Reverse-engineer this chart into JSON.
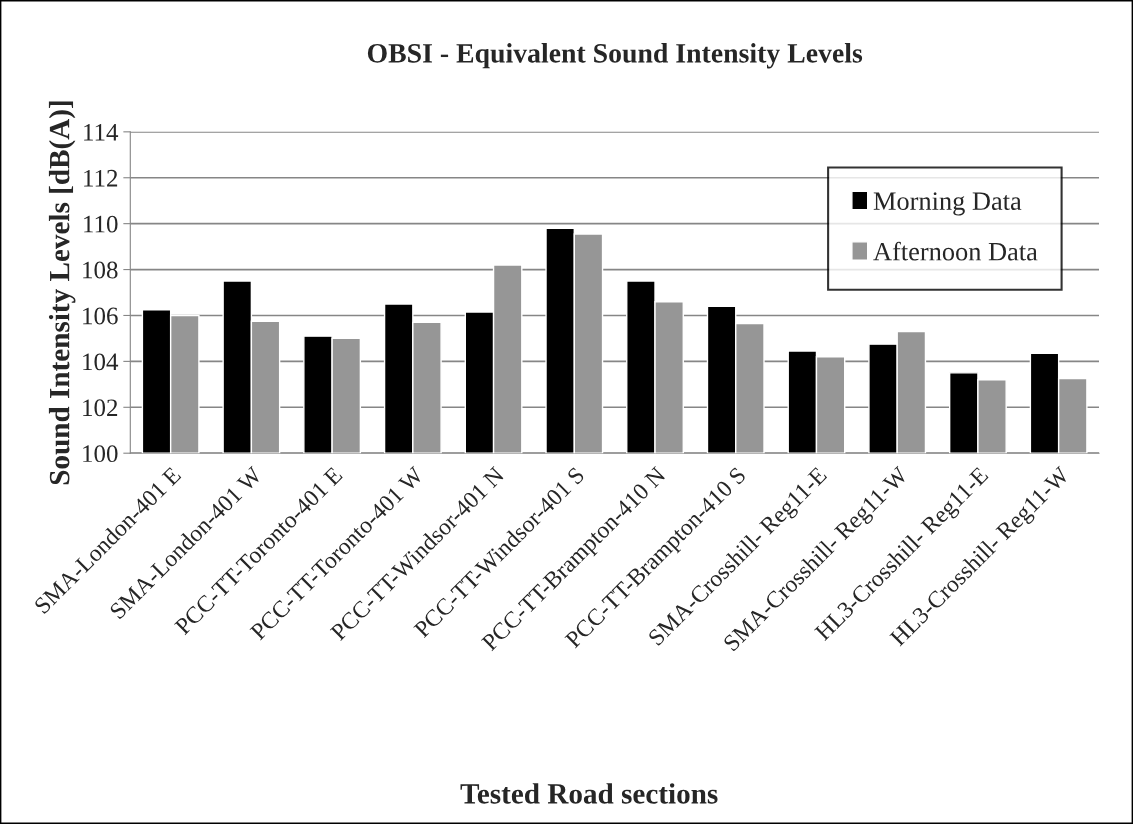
{
  "chart_data": {
    "type": "bar",
    "title": "OBSI - Equivalent Sound Intensity Levels",
    "xlabel": "Tested Road sections",
    "ylabel": "Sound Intensity Levels [dB(A)]",
    "categories": [
      "SMA-London-401 E",
      "SMA-London-401 W",
      "PCC-TT-Toronto-401 E",
      "PCC-TT-Toronto-401 W",
      "PCC-TT-Windsor-401 N",
      "PCC-TT-Windsor-401 S",
      "PCC-TT-Brampton-410 N",
      "PCC-TT-Brampton-410 S",
      "SMA-Crosshill- Reg11-E",
      "SMA-Crosshill- Reg11-W",
      "HL3-Crosshill- Reg11-E",
      "HL3-Crosshill- Reg11-W"
    ],
    "series": [
      {
        "name": "Morning Data",
        "color": "#000000",
        "values": [
          106.25,
          107.5,
          105.1,
          106.5,
          106.15,
          109.8,
          107.5,
          106.4,
          104.45,
          104.75,
          103.5,
          104.35
        ]
      },
      {
        "name": "Afternoon Data",
        "color": "#969696",
        "values": [
          106.0,
          105.75,
          105.0,
          105.7,
          108.2,
          109.55,
          106.6,
          105.65,
          104.2,
          105.3,
          103.2,
          103.25
        ]
      }
    ],
    "ylim": [
      100,
      114
    ],
    "yticks": [
      100,
      102,
      104,
      106,
      108,
      110,
      112,
      114
    ],
    "grid": "y",
    "legend": "top right"
  }
}
